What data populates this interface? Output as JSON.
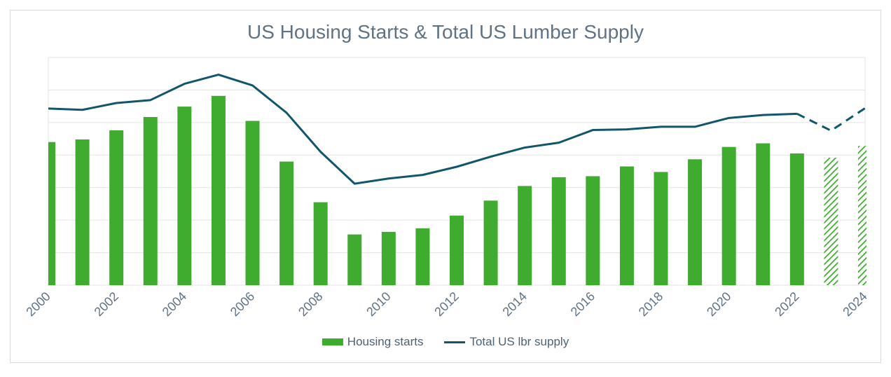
{
  "colors": {
    "bar": "#3fab2f",
    "line": "#12566b",
    "grid": "#e3e3e3",
    "text": "#5f7385"
  },
  "legend": {
    "bar_label": "Housing starts",
    "line_label": "Total US lbr supply"
  },
  "chart_data": {
    "type": "bar",
    "title": "US Housing Starts & Total US Lumber Supply",
    "xlabel": "",
    "ylabel": "",
    "grid": true,
    "legend_position": "bottom",
    "y_axis_labels_visible": false,
    "ylim": [
      0,
      7
    ],
    "categories": [
      2000,
      2001,
      2002,
      2003,
      2004,
      2005,
      2006,
      2007,
      2008,
      2009,
      2010,
      2011,
      2012,
      2013,
      2014,
      2015,
      2016,
      2017,
      2018,
      2019,
      2020,
      2021,
      2022,
      2023,
      2024
    ],
    "x_tick_labels": [
      "2000",
      "2002",
      "2004",
      "2006",
      "2008",
      "2010",
      "2012",
      "2014",
      "2016",
      "2018",
      "2020",
      "2022",
      "2024"
    ],
    "series": [
      {
        "name": "Housing starts",
        "type": "bar",
        "values": [
          4.4,
          4.48,
          4.76,
          5.17,
          5.49,
          5.82,
          5.05,
          3.8,
          2.55,
          1.56,
          1.64,
          1.75,
          2.14,
          2.6,
          3.05,
          3.32,
          3.35,
          3.65,
          3.48,
          3.87,
          4.25,
          4.36,
          4.05,
          3.92,
          4.28
        ],
        "forecast_from": "2023"
      },
      {
        "name": "Total US lbr supply",
        "type": "line",
        "values": [
          5.43,
          5.39,
          5.6,
          5.69,
          6.19,
          6.47,
          6.14,
          5.3,
          4.1,
          3.12,
          3.28,
          3.39,
          3.64,
          3.95,
          4.23,
          4.38,
          4.77,
          4.79,
          4.87,
          4.87,
          5.14,
          5.23,
          5.27,
          4.75,
          5.44
        ],
        "forecast_from": "2022"
      }
    ]
  }
}
